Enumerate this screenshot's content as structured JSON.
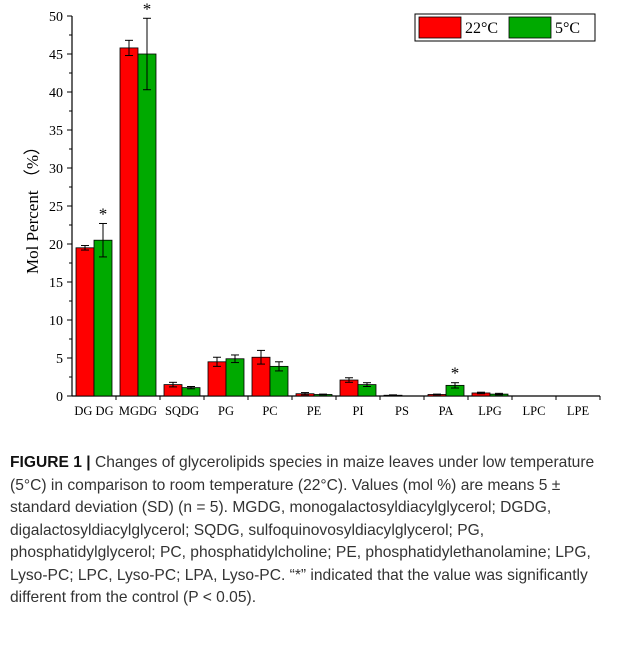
{
  "chart_data": {
    "type": "bar",
    "title": "",
    "xlabel": "",
    "ylabel": "Mol Percent （%）",
    "ylim": [
      0,
      50
    ],
    "yticks": [
      0,
      5,
      10,
      15,
      20,
      25,
      30,
      35,
      40,
      45,
      50
    ],
    "grid": false,
    "legend_position": "top-right",
    "categories": [
      "DGDG",
      "MGDG",
      "SQDG",
      "PG",
      "PC",
      "PE",
      "PI",
      "PS",
      "PA",
      "LPG",
      "LPC",
      "LPE"
    ],
    "category_labels": [
      "DG DG",
      "MGDG",
      "SQDG",
      "PG",
      "PC",
      "PE",
      "PI",
      "PS",
      "PA",
      "LPG",
      "LPC",
      "LPE"
    ],
    "series": [
      {
        "name": "22°C",
        "color": "#ff0000",
        "values": [
          19.5,
          45.8,
          1.5,
          4.5,
          5.1,
          0.3,
          2.1,
          0.1,
          0.2,
          0.4,
          0.0,
          0.0
        ],
        "errors": [
          0.3,
          1.0,
          0.3,
          0.6,
          0.9,
          0.15,
          0.3,
          0.05,
          0.05,
          0.1,
          0.0,
          0.0
        ]
      },
      {
        "name": "5°C",
        "color": "#00aa00",
        "values": [
          20.5,
          45.0,
          1.1,
          4.9,
          3.9,
          0.2,
          1.5,
          0.0,
          1.4,
          0.25,
          0.0,
          0.0
        ],
        "errors": [
          2.2,
          4.7,
          0.15,
          0.5,
          0.6,
          0.05,
          0.25,
          0.0,
          0.35,
          0.1,
          0.0,
          0.0
        ]
      }
    ],
    "annotations": [
      {
        "category": "DGDG",
        "series": "5°C",
        "text": "*"
      },
      {
        "category": "MGDG",
        "series": "5°C",
        "text": "*"
      },
      {
        "category": "PA",
        "series": "5°C",
        "text": "*"
      }
    ]
  },
  "caption": {
    "label": "FIGURE 1 |",
    "text": " Changes of glycerolipids species in maize leaves under low temperature (5°C) in comparison to room temperature (22°C). Values (mol %) are means 5 ± standard deviation (SD) (n = 5). MGDG, monogalactosyldiacylglycerol; DGDG, digalactosyldiacylglycerol; SQDG, sulfoquinovosyldiacylglycerol; PG, phosphatidylglycerol; PC, phosphatidylcholine; PE, phosphatidylethanolamine; LPG, Lyso-PC; LPC, Lyso-PC; LPA, Lyso-PC. “*” indicated that the value was significantly different from the control (P < 0.05)."
  }
}
